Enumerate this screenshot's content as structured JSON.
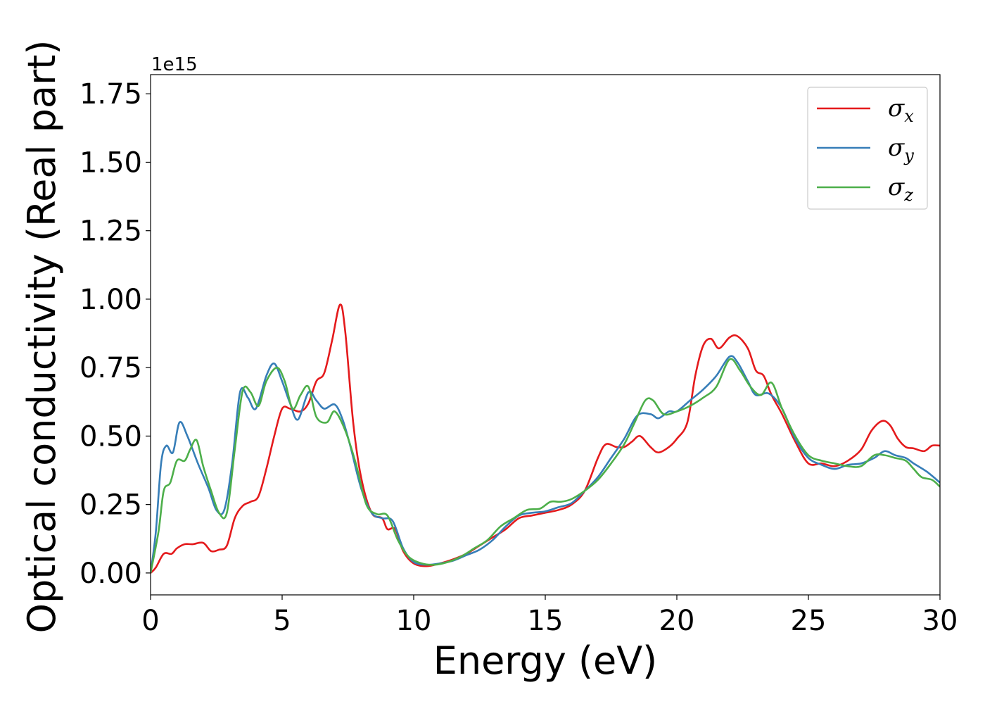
{
  "chart_data": {
    "type": "line",
    "xlabel": "Energy (eV)",
    "ylabel": "Optical conductivity (Real part)",
    "y_offset_label": "1e15",
    "xlim": [
      0,
      30
    ],
    "ylim": [
      -0.08,
      1.82
    ],
    "xticks": [
      0,
      5,
      10,
      15,
      20,
      25,
      30
    ],
    "xtick_labels": [
      "0",
      "5",
      "10",
      "15",
      "20",
      "25",
      "30"
    ],
    "yticks": [
      0.0,
      0.25,
      0.5,
      0.75,
      1.0,
      1.25,
      1.5,
      1.75
    ],
    "ytick_labels": [
      "0.00",
      "0.25",
      "0.50",
      "0.75",
      "1.00",
      "1.25",
      "1.50",
      "1.75"
    ],
    "grid": false,
    "legend_position": "top-right",
    "series": [
      {
        "name": "σx",
        "symbol": "σ",
        "subscript": "x",
        "color": "#e41a1c",
        "points": [
          [
            0,
            0
          ],
          [
            0.2,
            0.02
          ],
          [
            0.5,
            0.07
          ],
          [
            0.8,
            0.07
          ],
          [
            1.0,
            0.09
          ],
          [
            1.3,
            0.105
          ],
          [
            1.6,
            0.105
          ],
          [
            2.0,
            0.11
          ],
          [
            2.3,
            0.08
          ],
          [
            2.6,
            0.085
          ],
          [
            2.9,
            0.1
          ],
          [
            3.2,
            0.2
          ],
          [
            3.5,
            0.245
          ],
          [
            3.8,
            0.26
          ],
          [
            4.1,
            0.28
          ],
          [
            4.4,
            0.38
          ],
          [
            4.7,
            0.5
          ],
          [
            5.0,
            0.6
          ],
          [
            5.3,
            0.6
          ],
          [
            5.7,
            0.59
          ],
          [
            6.0,
            0.62
          ],
          [
            6.3,
            0.7
          ],
          [
            6.6,
            0.73
          ],
          [
            6.9,
            0.85
          ],
          [
            7.2,
            0.98
          ],
          [
            7.4,
            0.88
          ],
          [
            7.7,
            0.55
          ],
          [
            8.0,
            0.35
          ],
          [
            8.4,
            0.22
          ],
          [
            8.8,
            0.2
          ],
          [
            9.0,
            0.16
          ],
          [
            9.3,
            0.16
          ],
          [
            9.6,
            0.08
          ],
          [
            10.0,
            0.035
          ],
          [
            10.5,
            0.025
          ],
          [
            11.0,
            0.035
          ],
          [
            11.5,
            0.05
          ],
          [
            12.0,
            0.07
          ],
          [
            12.5,
            0.1
          ],
          [
            13.0,
            0.13
          ],
          [
            13.5,
            0.16
          ],
          [
            14.0,
            0.2
          ],
          [
            14.5,
            0.21
          ],
          [
            15.0,
            0.22
          ],
          [
            15.5,
            0.23
          ],
          [
            16.0,
            0.25
          ],
          [
            16.5,
            0.3
          ],
          [
            17.0,
            0.42
          ],
          [
            17.3,
            0.47
          ],
          [
            17.7,
            0.46
          ],
          [
            18.0,
            0.46
          ],
          [
            18.3,
            0.48
          ],
          [
            18.6,
            0.5
          ],
          [
            19.0,
            0.46
          ],
          [
            19.3,
            0.44
          ],
          [
            19.7,
            0.46
          ],
          [
            20.0,
            0.49
          ],
          [
            20.4,
            0.55
          ],
          [
            20.7,
            0.72
          ],
          [
            21.0,
            0.83
          ],
          [
            21.3,
            0.855
          ],
          [
            21.6,
            0.82
          ],
          [
            22.0,
            0.86
          ],
          [
            22.3,
            0.865
          ],
          [
            22.7,
            0.82
          ],
          [
            23.0,
            0.74
          ],
          [
            23.3,
            0.72
          ],
          [
            23.6,
            0.65
          ],
          [
            24.0,
            0.58
          ],
          [
            24.5,
            0.48
          ],
          [
            25.0,
            0.4
          ],
          [
            25.5,
            0.4
          ],
          [
            26.0,
            0.39
          ],
          [
            26.5,
            0.41
          ],
          [
            27.0,
            0.45
          ],
          [
            27.4,
            0.52
          ],
          [
            27.8,
            0.555
          ],
          [
            28.1,
            0.54
          ],
          [
            28.4,
            0.49
          ],
          [
            28.7,
            0.46
          ],
          [
            29.0,
            0.455
          ],
          [
            29.4,
            0.445
          ],
          [
            29.7,
            0.465
          ],
          [
            30.0,
            0.465
          ]
        ]
      },
      {
        "name": "σy",
        "symbol": "σ",
        "subscript": "y",
        "color": "#377eb8",
        "points": [
          [
            0,
            0
          ],
          [
            0.2,
            0.15
          ],
          [
            0.4,
            0.4
          ],
          [
            0.6,
            0.465
          ],
          [
            0.85,
            0.44
          ],
          [
            1.1,
            0.55
          ],
          [
            1.4,
            0.5
          ],
          [
            1.8,
            0.4
          ],
          [
            2.2,
            0.31
          ],
          [
            2.5,
            0.23
          ],
          [
            2.8,
            0.23
          ],
          [
            3.1,
            0.4
          ],
          [
            3.4,
            0.66
          ],
          [
            3.7,
            0.64
          ],
          [
            4.0,
            0.6
          ],
          [
            4.4,
            0.72
          ],
          [
            4.7,
            0.765
          ],
          [
            5.0,
            0.7
          ],
          [
            5.3,
            0.62
          ],
          [
            5.6,
            0.56
          ],
          [
            6.0,
            0.66
          ],
          [
            6.3,
            0.63
          ],
          [
            6.6,
            0.6
          ],
          [
            7.0,
            0.615
          ],
          [
            7.3,
            0.56
          ],
          [
            7.6,
            0.46
          ],
          [
            8.0,
            0.31
          ],
          [
            8.4,
            0.22
          ],
          [
            8.8,
            0.2
          ],
          [
            9.2,
            0.19
          ],
          [
            9.6,
            0.09
          ],
          [
            10.0,
            0.04
          ],
          [
            10.5,
            0.03
          ],
          [
            11.0,
            0.035
          ],
          [
            11.5,
            0.045
          ],
          [
            12.0,
            0.065
          ],
          [
            12.5,
            0.085
          ],
          [
            13.0,
            0.12
          ],
          [
            13.5,
            0.17
          ],
          [
            14.0,
            0.21
          ],
          [
            14.5,
            0.22
          ],
          [
            15.0,
            0.225
          ],
          [
            15.5,
            0.24
          ],
          [
            16.0,
            0.255
          ],
          [
            16.5,
            0.3
          ],
          [
            17.0,
            0.35
          ],
          [
            17.5,
            0.42
          ],
          [
            18.0,
            0.49
          ],
          [
            18.5,
            0.575
          ],
          [
            19.0,
            0.58
          ],
          [
            19.3,
            0.565
          ],
          [
            19.7,
            0.59
          ],
          [
            20.0,
            0.59
          ],
          [
            20.5,
            0.63
          ],
          [
            21.0,
            0.67
          ],
          [
            21.5,
            0.72
          ],
          [
            22.0,
            0.79
          ],
          [
            22.3,
            0.77
          ],
          [
            22.7,
            0.7
          ],
          [
            23.0,
            0.65
          ],
          [
            23.5,
            0.655
          ],
          [
            24.0,
            0.6
          ],
          [
            24.5,
            0.49
          ],
          [
            25.0,
            0.42
          ],
          [
            25.5,
            0.395
          ],
          [
            26.0,
            0.38
          ],
          [
            26.5,
            0.395
          ],
          [
            27.0,
            0.4
          ],
          [
            27.5,
            0.42
          ],
          [
            27.9,
            0.445
          ],
          [
            28.3,
            0.43
          ],
          [
            28.7,
            0.42
          ],
          [
            29.0,
            0.4
          ],
          [
            29.5,
            0.37
          ],
          [
            30.0,
            0.33
          ]
        ]
      },
      {
        "name": "σz",
        "symbol": "σ",
        "subscript": "z",
        "color": "#4daf4a",
        "points": [
          [
            0,
            0
          ],
          [
            0.3,
            0.15
          ],
          [
            0.5,
            0.3
          ],
          [
            0.75,
            0.33
          ],
          [
            1.0,
            0.41
          ],
          [
            1.3,
            0.41
          ],
          [
            1.5,
            0.45
          ],
          [
            1.75,
            0.485
          ],
          [
            2.0,
            0.39
          ],
          [
            2.3,
            0.3
          ],
          [
            2.6,
            0.22
          ],
          [
            2.9,
            0.22
          ],
          [
            3.2,
            0.45
          ],
          [
            3.5,
            0.665
          ],
          [
            3.8,
            0.66
          ],
          [
            4.1,
            0.61
          ],
          [
            4.4,
            0.7
          ],
          [
            4.8,
            0.75
          ],
          [
            5.1,
            0.7
          ],
          [
            5.4,
            0.6
          ],
          [
            5.7,
            0.65
          ],
          [
            6.0,
            0.68
          ],
          [
            6.3,
            0.57
          ],
          [
            6.7,
            0.55
          ],
          [
            7.0,
            0.59
          ],
          [
            7.4,
            0.52
          ],
          [
            7.8,
            0.4
          ],
          [
            8.2,
            0.25
          ],
          [
            8.6,
            0.215
          ],
          [
            9.0,
            0.21
          ],
          [
            9.4,
            0.12
          ],
          [
            9.8,
            0.06
          ],
          [
            10.3,
            0.035
          ],
          [
            10.8,
            0.03
          ],
          [
            11.3,
            0.04
          ],
          [
            11.8,
            0.06
          ],
          [
            12.3,
            0.09
          ],
          [
            12.8,
            0.12
          ],
          [
            13.3,
            0.17
          ],
          [
            13.8,
            0.2
          ],
          [
            14.3,
            0.23
          ],
          [
            14.8,
            0.235
          ],
          [
            15.2,
            0.26
          ],
          [
            15.6,
            0.26
          ],
          [
            16.0,
            0.27
          ],
          [
            16.5,
            0.3
          ],
          [
            17.0,
            0.34
          ],
          [
            17.5,
            0.4
          ],
          [
            18.0,
            0.47
          ],
          [
            18.4,
            0.55
          ],
          [
            18.8,
            0.63
          ],
          [
            19.1,
            0.63
          ],
          [
            19.5,
            0.58
          ],
          [
            20.0,
            0.59
          ],
          [
            20.5,
            0.61
          ],
          [
            21.0,
            0.64
          ],
          [
            21.5,
            0.68
          ],
          [
            22.0,
            0.78
          ],
          [
            22.4,
            0.74
          ],
          [
            22.8,
            0.68
          ],
          [
            23.2,
            0.65
          ],
          [
            23.6,
            0.695
          ],
          [
            24.0,
            0.6
          ],
          [
            24.5,
            0.5
          ],
          [
            25.0,
            0.43
          ],
          [
            25.5,
            0.41
          ],
          [
            26.0,
            0.4
          ],
          [
            26.5,
            0.39
          ],
          [
            27.0,
            0.39
          ],
          [
            27.5,
            0.43
          ],
          [
            27.9,
            0.43
          ],
          [
            28.3,
            0.42
          ],
          [
            28.7,
            0.41
          ],
          [
            29.0,
            0.38
          ],
          [
            29.3,
            0.35
          ],
          [
            29.7,
            0.34
          ],
          [
            30.0,
            0.315
          ]
        ]
      }
    ]
  }
}
